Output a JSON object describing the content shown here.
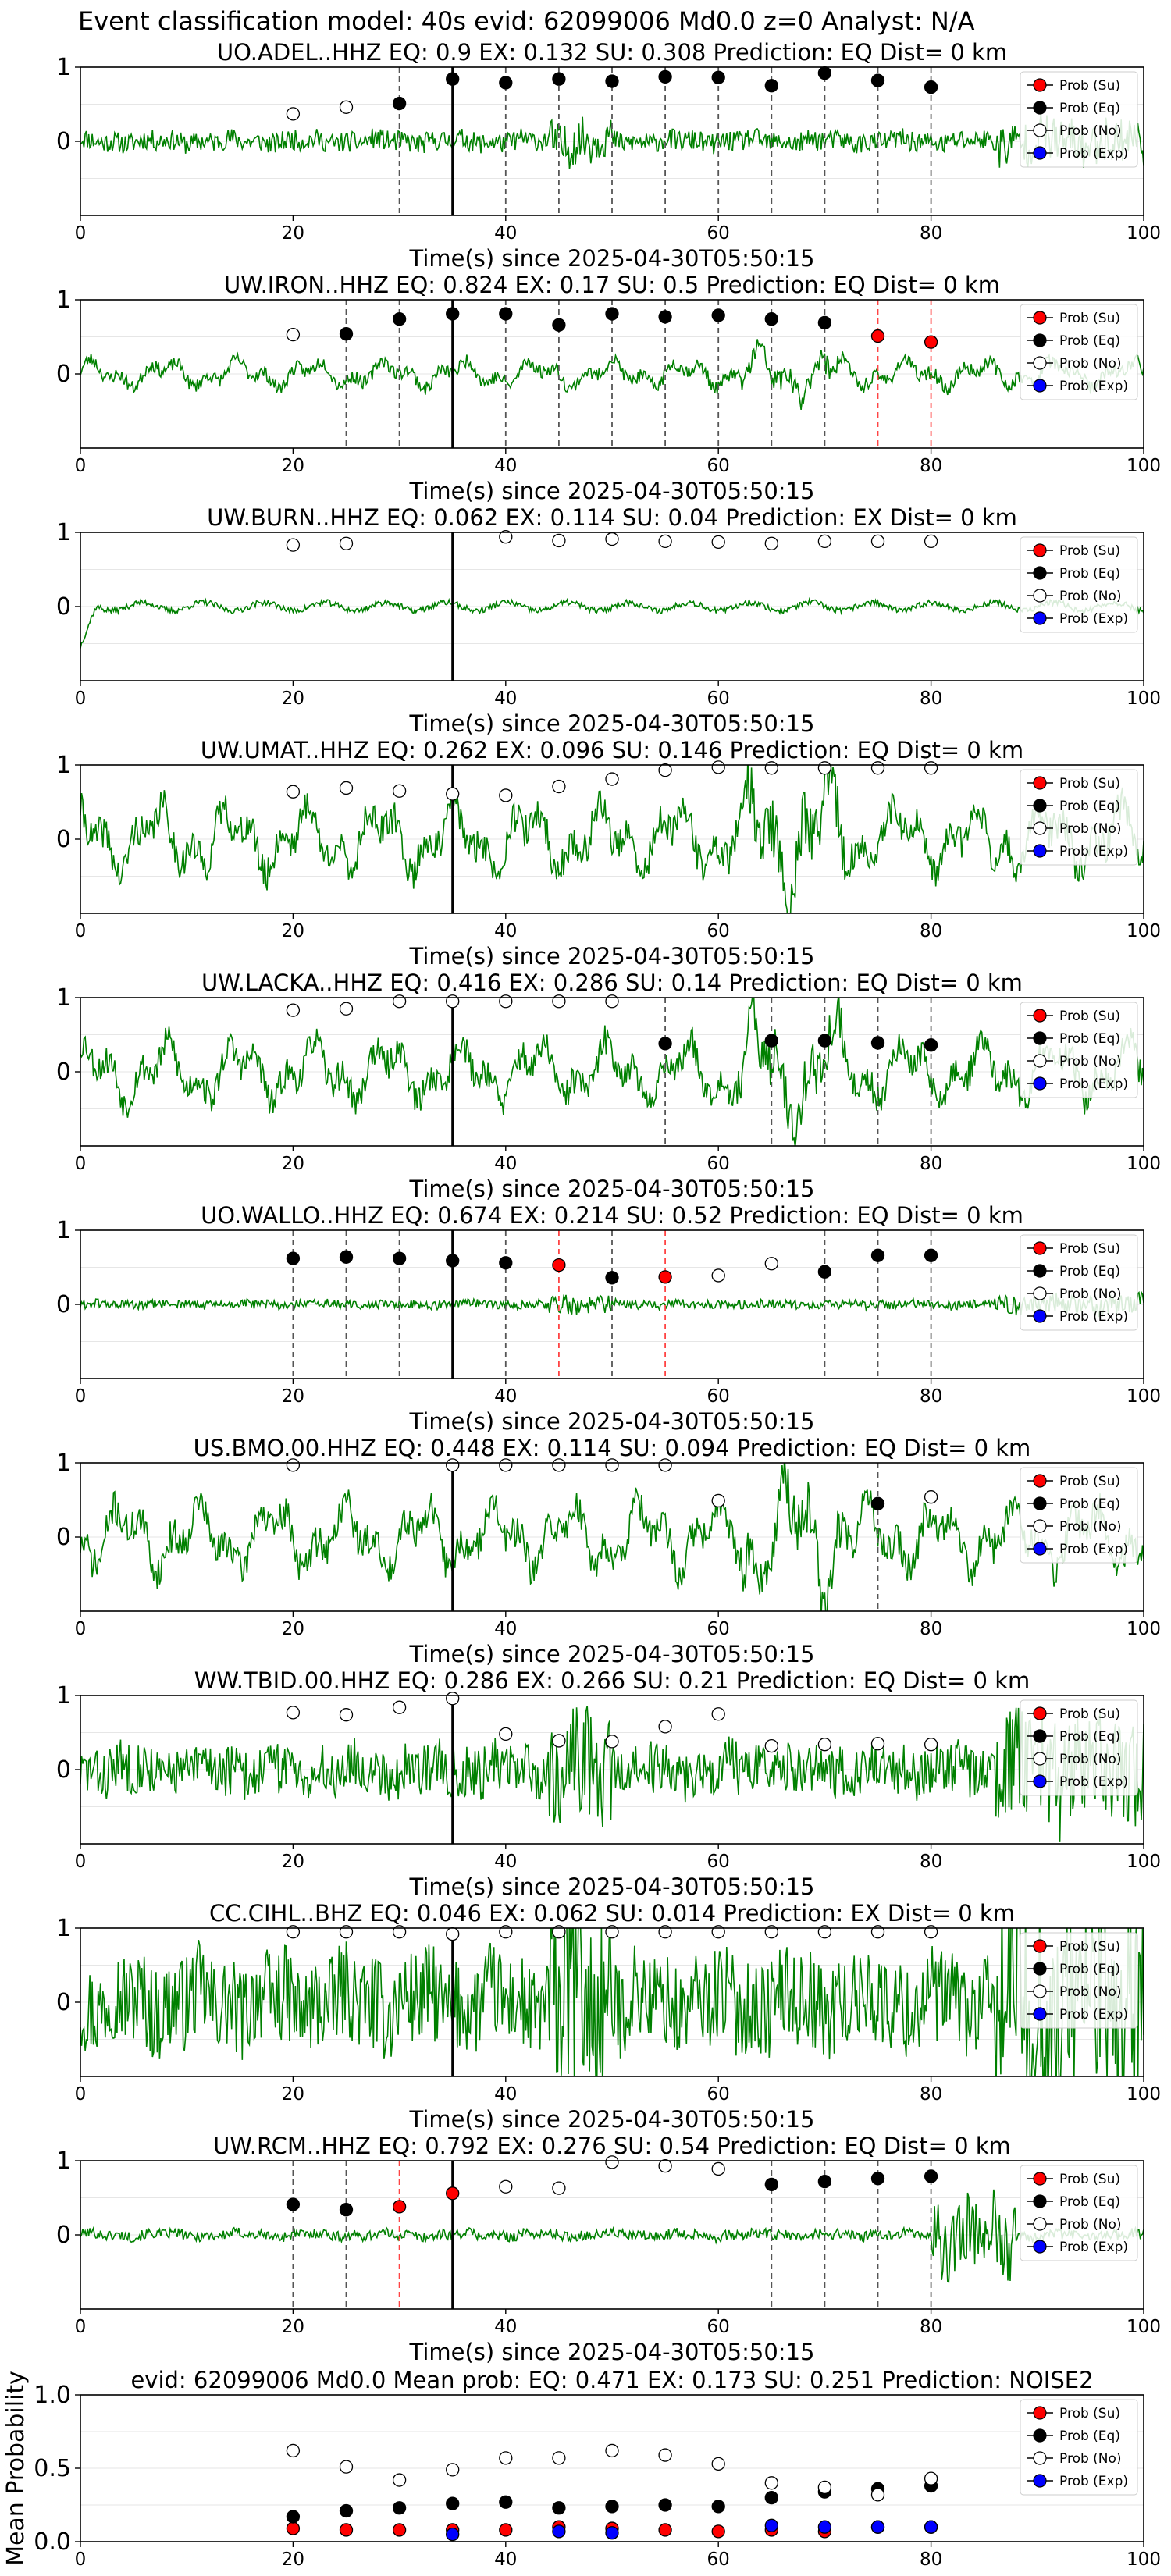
{
  "suptitle": "Event classification model: 40s evid: 62099006 Md0.0 z=0 Analyst: N/A",
  "legend_labels": [
    "Prob (Su)",
    "Prob (Eq)",
    "Prob (No)",
    "Prob (Exp)"
  ],
  "colors": {
    "trace": "#008000",
    "su": "#ff0000",
    "eq": "#000000",
    "no": "#ffffff",
    "exp": "#0000ff",
    "vline_eq": "#555555",
    "vline_su": "#ff4444",
    "pick": "#000000",
    "grid": "#e6e6e6"
  },
  "chart_data": [
    {
      "type": "line",
      "id": "UO.ADEL",
      "title": "UO.ADEL..HHZ   EQ: 0.9   EX: 0.132   SU: 0.308    Prediction: EQ     Dist= 0 km",
      "xlabel": "Time(s) since 2025-04-30T05:50:15",
      "xlim": [
        0,
        100
      ],
      "ylim": [
        -1,
        1
      ],
      "xticks": [
        "0",
        "20",
        "40",
        "60",
        "80",
        "100"
      ],
      "yticks": [
        "1",
        "0"
      ],
      "grid": true,
      "legend": "upper right",
      "trace": {
        "style": "noise",
        "amp": 0.14,
        "seed": 11
      },
      "pick_time": 35,
      "points": [
        {
          "x": 20,
          "y": 0.37,
          "cls": "no"
        },
        {
          "x": 25,
          "y": 0.46,
          "cls": "no"
        },
        {
          "x": 30,
          "y": 0.51,
          "cls": "eq"
        },
        {
          "x": 35,
          "y": 0.84,
          "cls": "eq"
        },
        {
          "x": 40,
          "y": 0.79,
          "cls": "eq"
        },
        {
          "x": 45,
          "y": 0.84,
          "cls": "eq"
        },
        {
          "x": 50,
          "y": 0.81,
          "cls": "eq"
        },
        {
          "x": 55,
          "y": 0.87,
          "cls": "eq"
        },
        {
          "x": 60,
          "y": 0.86,
          "cls": "eq"
        },
        {
          "x": 65,
          "y": 0.75,
          "cls": "eq"
        },
        {
          "x": 70,
          "y": 0.92,
          "cls": "eq"
        },
        {
          "x": 75,
          "y": 0.82,
          "cls": "eq"
        },
        {
          "x": 80,
          "y": 0.73,
          "cls": "eq"
        }
      ]
    },
    {
      "type": "line",
      "id": "UW.IRON",
      "title": "UW.IRON..HHZ   EQ: 0.824   EX: 0.17   SU: 0.5    Prediction: EQ     Dist= 0 km",
      "xlabel": "Time(s) since 2025-04-30T05:50:15",
      "xlim": [
        0,
        100
      ],
      "ylim": [
        -1,
        1
      ],
      "xticks": [
        "0",
        "20",
        "40",
        "60",
        "80",
        "100"
      ],
      "yticks": [
        "1",
        "0"
      ],
      "grid": true,
      "legend": "upper right",
      "trace": {
        "style": "wave",
        "amp": 0.2,
        "seed": 23
      },
      "pick_time": 35,
      "points": [
        {
          "x": 20,
          "y": 0.53,
          "cls": "no"
        },
        {
          "x": 25,
          "y": 0.54,
          "cls": "eq"
        },
        {
          "x": 30,
          "y": 0.74,
          "cls": "eq"
        },
        {
          "x": 35,
          "y": 0.81,
          "cls": "eq"
        },
        {
          "x": 40,
          "y": 0.81,
          "cls": "eq"
        },
        {
          "x": 45,
          "y": 0.66,
          "cls": "eq"
        },
        {
          "x": 50,
          "y": 0.81,
          "cls": "eq"
        },
        {
          "x": 55,
          "y": 0.77,
          "cls": "eq"
        },
        {
          "x": 60,
          "y": 0.79,
          "cls": "eq"
        },
        {
          "x": 65,
          "y": 0.74,
          "cls": "eq"
        },
        {
          "x": 70,
          "y": 0.69,
          "cls": "eq"
        },
        {
          "x": 75,
          "y": 0.51,
          "cls": "su"
        },
        {
          "x": 80,
          "y": 0.43,
          "cls": "su"
        }
      ]
    },
    {
      "type": "line",
      "id": "UW.BURN",
      "title": "UW.BURN..HHZ   EQ: 0.062   EX: 0.114   SU: 0.04    Prediction: EX     Dist= 0 km",
      "xlabel": "Time(s) since 2025-04-30T05:50:15",
      "xlim": [
        0,
        100
      ],
      "ylim": [
        -1,
        1
      ],
      "xticks": [
        "0",
        "20",
        "40",
        "60",
        "80",
        "100"
      ],
      "yticks": [
        "1",
        "0"
      ],
      "grid": true,
      "legend": "upper right",
      "trace": {
        "style": "low",
        "amp": 0.08,
        "seed": 37
      },
      "pick_time": 35,
      "points": [
        {
          "x": 20,
          "y": 0.83,
          "cls": "no"
        },
        {
          "x": 25,
          "y": 0.85,
          "cls": "no"
        },
        {
          "x": 40,
          "y": 0.94,
          "cls": "no"
        },
        {
          "x": 45,
          "y": 0.89,
          "cls": "no"
        },
        {
          "x": 50,
          "y": 0.91,
          "cls": "no"
        },
        {
          "x": 55,
          "y": 0.88,
          "cls": "no"
        },
        {
          "x": 60,
          "y": 0.87,
          "cls": "no"
        },
        {
          "x": 65,
          "y": 0.85,
          "cls": "no"
        },
        {
          "x": 70,
          "y": 0.88,
          "cls": "no"
        },
        {
          "x": 75,
          "y": 0.88,
          "cls": "no"
        },
        {
          "x": 80,
          "y": 0.88,
          "cls": "no"
        }
      ]
    },
    {
      "type": "line",
      "id": "UW.UMAT",
      "title": "UW.UMAT..HHZ   EQ: 0.262   EX: 0.096   SU: 0.146    Prediction: EQ     Dist= 0 km",
      "xlabel": "Time(s) since 2025-04-30T05:50:15",
      "xlim": [
        0,
        100
      ],
      "ylim": [
        -1,
        1
      ],
      "xticks": [
        "0",
        "20",
        "40",
        "60",
        "80",
        "100"
      ],
      "yticks": [
        "1",
        "0"
      ],
      "grid": true,
      "legend": "upper right",
      "trace": {
        "style": "wave",
        "amp": 0.5,
        "seed": 41
      },
      "pick_time": 35,
      "points": [
        {
          "x": 20,
          "y": 0.64,
          "cls": "no"
        },
        {
          "x": 25,
          "y": 0.69,
          "cls": "no"
        },
        {
          "x": 30,
          "y": 0.65,
          "cls": "no"
        },
        {
          "x": 35,
          "y": 0.61,
          "cls": "no"
        },
        {
          "x": 40,
          "y": 0.59,
          "cls": "no"
        },
        {
          "x": 45,
          "y": 0.71,
          "cls": "no"
        },
        {
          "x": 50,
          "y": 0.81,
          "cls": "no"
        },
        {
          "x": 55,
          "y": 0.93,
          "cls": "no"
        },
        {
          "x": 60,
          "y": 0.97,
          "cls": "no"
        },
        {
          "x": 65,
          "y": 0.96,
          "cls": "no"
        },
        {
          "x": 70,
          "y": 0.96,
          "cls": "no"
        },
        {
          "x": 75,
          "y": 0.96,
          "cls": "no"
        },
        {
          "x": 80,
          "y": 0.96,
          "cls": "no"
        }
      ]
    },
    {
      "type": "line",
      "id": "UW.LACKA",
      "title": "UW.LACKA..HHZ   EQ: 0.416   EX: 0.286   SU: 0.14    Prediction: EQ     Dist= 0 km",
      "xlabel": "Time(s) since 2025-04-30T05:50:15",
      "xlim": [
        0,
        100
      ],
      "ylim": [
        -1,
        1
      ],
      "xticks": [
        "0",
        "20",
        "40",
        "60",
        "80",
        "100"
      ],
      "yticks": [
        "1",
        "0"
      ],
      "grid": true,
      "legend": "upper right",
      "trace": {
        "style": "wave",
        "amp": 0.45,
        "seed": 53
      },
      "pick_time": 35,
      "points": [
        {
          "x": 20,
          "y": 0.83,
          "cls": "no"
        },
        {
          "x": 25,
          "y": 0.85,
          "cls": "no"
        },
        {
          "x": 30,
          "y": 0.95,
          "cls": "no"
        },
        {
          "x": 35,
          "y": 0.95,
          "cls": "no"
        },
        {
          "x": 40,
          "y": 0.95,
          "cls": "no"
        },
        {
          "x": 45,
          "y": 0.95,
          "cls": "no"
        },
        {
          "x": 50,
          "y": 0.95,
          "cls": "no"
        },
        {
          "x": 55,
          "y": 0.38,
          "cls": "eq"
        },
        {
          "x": 65,
          "y": 0.42,
          "cls": "eq"
        },
        {
          "x": 70,
          "y": 0.42,
          "cls": "eq"
        },
        {
          "x": 75,
          "y": 0.39,
          "cls": "eq"
        },
        {
          "x": 80,
          "y": 0.36,
          "cls": "eq"
        }
      ]
    },
    {
      "type": "line",
      "id": "UO.WALLO",
      "title": "UO.WALLO..HHZ   EQ: 0.674   EX: 0.214   SU: 0.52    Prediction: EQ     Dist= 0 km",
      "xlabel": "Time(s) since 2025-04-30T05:50:15",
      "xlim": [
        0,
        100
      ],
      "ylim": [
        -1,
        1
      ],
      "xticks": [
        "0",
        "20",
        "40",
        "60",
        "80",
        "100"
      ],
      "yticks": [
        "1",
        "0"
      ],
      "grid": true,
      "legend": "upper right",
      "trace": {
        "style": "noise",
        "amp": 0.06,
        "seed": 61
      },
      "pick_time": 35,
      "points": [
        {
          "x": 20,
          "y": 0.62,
          "cls": "eq"
        },
        {
          "x": 25,
          "y": 0.64,
          "cls": "eq"
        },
        {
          "x": 30,
          "y": 0.62,
          "cls": "eq"
        },
        {
          "x": 35,
          "y": 0.59,
          "cls": "eq"
        },
        {
          "x": 40,
          "y": 0.56,
          "cls": "eq"
        },
        {
          "x": 45,
          "y": 0.53,
          "cls": "su"
        },
        {
          "x": 50,
          "y": 0.36,
          "cls": "eq"
        },
        {
          "x": 55,
          "y": 0.37,
          "cls": "su"
        },
        {
          "x": 60,
          "y": 0.39,
          "cls": "no"
        },
        {
          "x": 65,
          "y": 0.55,
          "cls": "no"
        },
        {
          "x": 70,
          "y": 0.44,
          "cls": "eq"
        },
        {
          "x": 75,
          "y": 0.66,
          "cls": "eq"
        },
        {
          "x": 80,
          "y": 0.66,
          "cls": "eq"
        }
      ]
    },
    {
      "type": "line",
      "id": "US.BMO",
      "title": "US.BMO.00.HHZ   EQ: 0.448   EX: 0.114   SU: 0.094    Prediction: EQ     Dist= 0 km",
      "xlabel": "Time(s) since 2025-04-30T05:50:15",
      "xlim": [
        0,
        100
      ],
      "ylim": [
        -1,
        1
      ],
      "xticks": [
        "0",
        "20",
        "40",
        "60",
        "80",
        "100"
      ],
      "yticks": [
        "1",
        "0"
      ],
      "grid": true,
      "legend": "upper right",
      "trace": {
        "style": "wave",
        "amp": 0.5,
        "seed": 71
      },
      "pick_time": 35,
      "points": [
        {
          "x": 20,
          "y": 0.97,
          "cls": "no"
        },
        {
          "x": 35,
          "y": 0.97,
          "cls": "no"
        },
        {
          "x": 40,
          "y": 0.97,
          "cls": "no"
        },
        {
          "x": 45,
          "y": 0.97,
          "cls": "no"
        },
        {
          "x": 50,
          "y": 0.97,
          "cls": "no"
        },
        {
          "x": 55,
          "y": 0.97,
          "cls": "no"
        },
        {
          "x": 60,
          "y": 0.49,
          "cls": "no"
        },
        {
          "x": 75,
          "y": 0.45,
          "cls": "eq"
        },
        {
          "x": 80,
          "y": 0.54,
          "cls": "no"
        }
      ]
    },
    {
      "type": "line",
      "id": "WW.TBID",
      "title": "WW.TBID.00.HHZ   EQ: 0.286   EX: 0.266   SU: 0.21    Prediction: EQ     Dist= 0 km",
      "xlabel": "Time(s) since 2025-04-30T05:50:15",
      "xlim": [
        0,
        100
      ],
      "ylim": [
        -1,
        1
      ],
      "xticks": [
        "0",
        "20",
        "40",
        "60",
        "80",
        "100"
      ],
      "yticks": [
        "1",
        "0"
      ],
      "grid": true,
      "legend": "upper right",
      "trace": {
        "style": "noise",
        "amp": 0.35,
        "seed": 83
      },
      "pick_time": 35,
      "points": [
        {
          "x": 20,
          "y": 0.77,
          "cls": "no"
        },
        {
          "x": 25,
          "y": 0.74,
          "cls": "no"
        },
        {
          "x": 30,
          "y": 0.84,
          "cls": "no"
        },
        {
          "x": 35,
          "y": 0.96,
          "cls": "no"
        },
        {
          "x": 40,
          "y": 0.48,
          "cls": "no"
        },
        {
          "x": 45,
          "y": 0.39,
          "cls": "no"
        },
        {
          "x": 50,
          "y": 0.38,
          "cls": "no"
        },
        {
          "x": 55,
          "y": 0.58,
          "cls": "no"
        },
        {
          "x": 60,
          "y": 0.75,
          "cls": "no"
        },
        {
          "x": 65,
          "y": 0.32,
          "cls": "no"
        },
        {
          "x": 70,
          "y": 0.34,
          "cls": "no"
        },
        {
          "x": 75,
          "y": 0.35,
          "cls": "no"
        },
        {
          "x": 80,
          "y": 0.34,
          "cls": "no"
        }
      ]
    },
    {
      "type": "line",
      "id": "CC.CIHL",
      "title": "CC.CIHL..BHZ   EQ: 0.046   EX: 0.062   SU: 0.014    Prediction: EX     Dist= 0 km",
      "xlabel": "Time(s) since 2025-04-30T05:50:15",
      "xlim": [
        0,
        100
      ],
      "ylim": [
        -1,
        1
      ],
      "xticks": [
        "0",
        "20",
        "40",
        "60",
        "80",
        "100"
      ],
      "yticks": [
        "1",
        "0"
      ],
      "grid": true,
      "legend": "upper right",
      "trace": {
        "style": "noise",
        "amp": 0.65,
        "seed": 97
      },
      "pick_time": 35,
      "points": [
        {
          "x": 20,
          "y": 0.95,
          "cls": "no"
        },
        {
          "x": 25,
          "y": 0.95,
          "cls": "no"
        },
        {
          "x": 30,
          "y": 0.95,
          "cls": "no"
        },
        {
          "x": 35,
          "y": 0.92,
          "cls": "no"
        },
        {
          "x": 40,
          "y": 0.95,
          "cls": "no"
        },
        {
          "x": 45,
          "y": 0.95,
          "cls": "no"
        },
        {
          "x": 50,
          "y": 0.95,
          "cls": "no"
        },
        {
          "x": 55,
          "y": 0.95,
          "cls": "no"
        },
        {
          "x": 60,
          "y": 0.95,
          "cls": "no"
        },
        {
          "x": 65,
          "y": 0.95,
          "cls": "no"
        },
        {
          "x": 70,
          "y": 0.95,
          "cls": "no"
        },
        {
          "x": 75,
          "y": 0.95,
          "cls": "no"
        },
        {
          "x": 80,
          "y": 0.95,
          "cls": "no"
        }
      ]
    },
    {
      "type": "line",
      "id": "UW.RCM",
      "title": "UW.RCM..HHZ   EQ: 0.792   EX: 0.276   SU: 0.54    Prediction: EQ     Dist= 0 km",
      "xlabel": "Time(s) since 2025-04-30T05:50:15",
      "xlim": [
        0,
        100
      ],
      "ylim": [
        -1,
        1
      ],
      "xticks": [
        "0",
        "20",
        "40",
        "60",
        "80",
        "100"
      ],
      "yticks": [
        "1",
        "0"
      ],
      "grid": true,
      "legend": "upper right",
      "trace": {
        "style": "late",
        "amp": 0.07,
        "seed": 101
      },
      "pick_time": 35,
      "points": [
        {
          "x": 20,
          "y": 0.41,
          "cls": "eq"
        },
        {
          "x": 25,
          "y": 0.34,
          "cls": "eq"
        },
        {
          "x": 30,
          "y": 0.38,
          "cls": "su"
        },
        {
          "x": 35,
          "y": 0.56,
          "cls": "su"
        },
        {
          "x": 40,
          "y": 0.65,
          "cls": "no"
        },
        {
          "x": 45,
          "y": 0.63,
          "cls": "no"
        },
        {
          "x": 50,
          "y": 0.98,
          "cls": "no"
        },
        {
          "x": 55,
          "y": 0.93,
          "cls": "no"
        },
        {
          "x": 60,
          "y": 0.89,
          "cls": "no"
        },
        {
          "x": 65,
          "y": 0.68,
          "cls": "eq"
        },
        {
          "x": 70,
          "y": 0.72,
          "cls": "eq"
        },
        {
          "x": 75,
          "y": 0.76,
          "cls": "eq"
        },
        {
          "x": 80,
          "y": 0.79,
          "cls": "eq"
        }
      ]
    },
    {
      "type": "scatter",
      "id": "mean",
      "title": "evid: 62099006   Md0.0    Mean prob:    EQ: 0.471   EX: 0.173   SU: 0.251    Prediction: NOISE2",
      "ylabel": "Mean Probability",
      "xlim": [
        0,
        100
      ],
      "ylim": [
        0,
        1
      ],
      "xticks": [
        "0",
        "20",
        "40",
        "60",
        "80",
        "100"
      ],
      "yticks": [
        "1.0",
        "0.5",
        "0.0"
      ],
      "grid": true,
      "legend": "upper right",
      "series": [
        {
          "name": "Prob (Su)",
          "cls": "su",
          "x": [
            20,
            25,
            30,
            35,
            40,
            45,
            50,
            55,
            60,
            65,
            70,
            75,
            80
          ],
          "y": [
            0.09,
            0.08,
            0.08,
            0.08,
            0.08,
            0.1,
            0.09,
            0.08,
            0.07,
            0.08,
            0.07,
            0.1,
            0.1
          ]
        },
        {
          "name": "Prob (Eq)",
          "cls": "eq",
          "x": [
            20,
            25,
            30,
            35,
            40,
            45,
            50,
            55,
            60,
            65,
            70,
            75,
            80
          ],
          "y": [
            0.17,
            0.21,
            0.23,
            0.26,
            0.27,
            0.23,
            0.24,
            0.25,
            0.24,
            0.3,
            0.34,
            0.36,
            0.38
          ]
        },
        {
          "name": "Prob (No)",
          "cls": "no",
          "x": [
            20,
            25,
            30,
            35,
            40,
            45,
            50,
            55,
            60,
            65,
            70,
            75,
            80
          ],
          "y": [
            0.62,
            0.51,
            0.42,
            0.49,
            0.57,
            0.57,
            0.62,
            0.59,
            0.53,
            0.4,
            0.37,
            0.32,
            0.43
          ]
        },
        {
          "name": "Prob (Exp)",
          "cls": "exp",
          "x": [
            35,
            45,
            50,
            65,
            70,
            75,
            80
          ],
          "y": [
            0.05,
            0.07,
            0.06,
            0.11,
            0.1,
            0.1,
            0.1
          ]
        }
      ]
    }
  ]
}
